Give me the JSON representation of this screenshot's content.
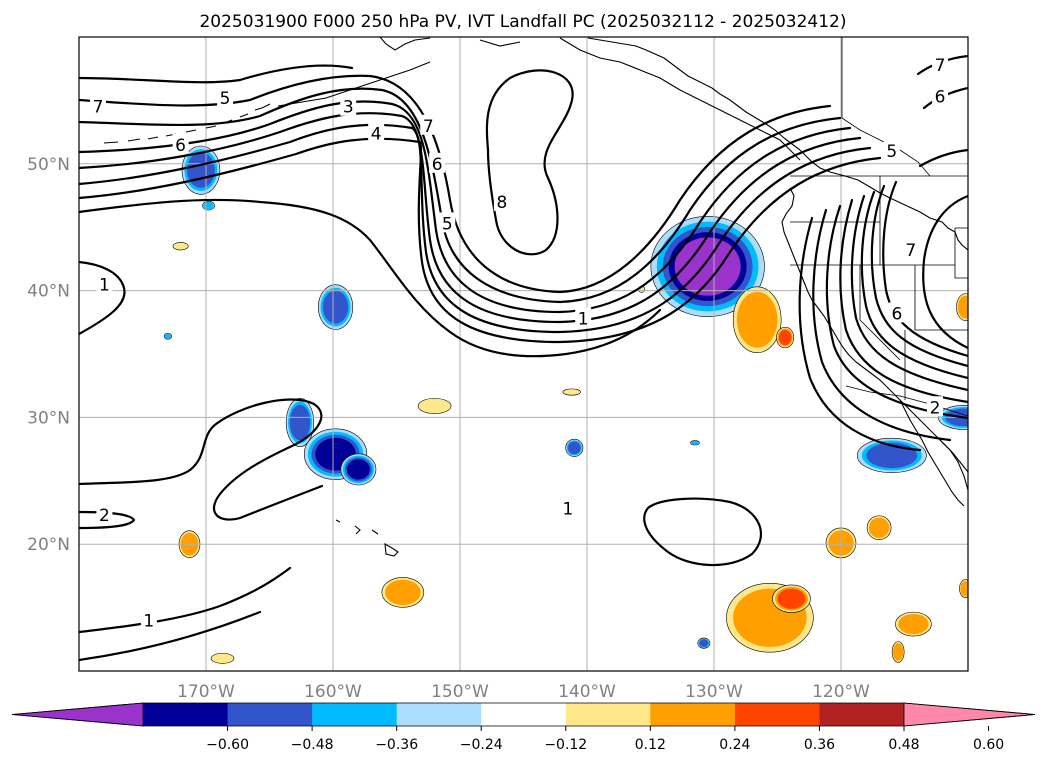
{
  "title": "2025031900 F000 250 hPa PV, IVT Landfall PC (2025032112 - 2025032412)",
  "map": {
    "extent": {
      "lon_min": -180,
      "lon_max": -110,
      "lat_min": 10,
      "lat_max": 60
    },
    "lon_ticks": [
      {
        "lon": -170,
        "label": "170°W"
      },
      {
        "lon": -160,
        "label": "160°W"
      },
      {
        "lon": -150,
        "label": "150°W"
      },
      {
        "lon": -140,
        "label": "140°W"
      },
      {
        "lon": -130,
        "label": "130°W"
      },
      {
        "lon": -120,
        "label": "120°W"
      }
    ],
    "lat_ticks": [
      {
        "lat": 50,
        "label": "50°N"
      },
      {
        "lat": 40,
        "label": "40°N"
      },
      {
        "lat": 30,
        "label": "30°N"
      },
      {
        "lat": 20,
        "label": "20°N"
      }
    ],
    "grid": true,
    "contour_labels": [
      {
        "text": "7",
        "lon": -178.5,
        "lat": 54.5
      },
      {
        "text": "5",
        "lon": -168.5,
        "lat": 55.2
      },
      {
        "text": "6",
        "lon": -172.0,
        "lat": 51.5
      },
      {
        "text": "3",
        "lon": -158.8,
        "lat": 54.5
      },
      {
        "text": "4",
        "lon": -156.6,
        "lat": 52.4
      },
      {
        "text": "7",
        "lon": -152.5,
        "lat": 53.0
      },
      {
        "text": "6",
        "lon": -151.8,
        "lat": 50.0
      },
      {
        "text": "5",
        "lon": -151.0,
        "lat": 45.3
      },
      {
        "text": "8",
        "lon": -146.7,
        "lat": 47.0
      },
      {
        "text": "1",
        "lon": -178.0,
        "lat": 40.5
      },
      {
        "text": "1",
        "lon": -140.3,
        "lat": 37.8
      },
      {
        "text": "2",
        "lon": -178.0,
        "lat": 22.3
      },
      {
        "text": "1",
        "lon": -141.5,
        "lat": 22.8
      },
      {
        "text": "1",
        "lon": -174.5,
        "lat": 14.0
      },
      {
        "text": "7",
        "lon": -112.2,
        "lat": 57.8
      },
      {
        "text": "6",
        "lon": -112.2,
        "lat": 55.3
      },
      {
        "text": "5",
        "lon": -116.0,
        "lat": 51.0
      },
      {
        "text": "7",
        "lon": -114.5,
        "lat": 43.2
      },
      {
        "text": "6",
        "lon": -115.6,
        "lat": 38.2
      },
      {
        "text": "2",
        "lon": -112.6,
        "lat": 30.8
      }
    ],
    "pc_field": [
      {
        "name": "blob-1",
        "lon": -170.4,
        "lat": 49.5,
        "rx": 1.1,
        "ry": 1.4,
        "level": 2
      },
      {
        "name": "blob-2",
        "lon": -169.8,
        "lat": 46.7,
        "rx": 0.4,
        "ry": 0.3,
        "level": 3
      },
      {
        "name": "blob-3",
        "lon": -159.8,
        "lat": 38.7,
        "rx": 1.0,
        "ry": 1.3,
        "level": 2
      },
      {
        "name": "blob-4",
        "lon": -162.6,
        "lat": 29.6,
        "rx": 0.8,
        "ry": 1.4,
        "level": 2
      },
      {
        "name": "blob-5",
        "lon": -159.8,
        "lat": 27.1,
        "rx": 1.6,
        "ry": 1.3,
        "level": 1
      },
      {
        "name": "blob-6",
        "lon": -158.0,
        "lat": 25.9,
        "rx": 0.9,
        "ry": 0.8,
        "level": 1
      },
      {
        "name": "blob-7",
        "lon": -130.5,
        "lat": 41.9,
        "rx": 2.6,
        "ry": 2.3,
        "level": 0
      },
      {
        "name": "blob-8",
        "lon": -141.0,
        "lat": 27.6,
        "rx": 0.5,
        "ry": 0.5,
        "level": 2
      },
      {
        "name": "blob-9",
        "lon": -116.0,
        "lat": 27.0,
        "rx": 2.0,
        "ry": 1.0,
        "level": 2
      },
      {
        "name": "blob-10",
        "lon": -110.3,
        "lat": 30.0,
        "rx": 1.5,
        "ry": 0.7,
        "level": 2
      },
      {
        "name": "blob-11",
        "lon": -131.5,
        "lat": 28.0,
        "rx": 0.3,
        "ry": 0.15,
        "level": 3
      },
      {
        "name": "blob-12",
        "lon": -130.8,
        "lat": 12.2,
        "rx": 0.35,
        "ry": 0.3,
        "level": 2
      },
      {
        "name": "blob-13",
        "lon": -173.0,
        "lat": 36.4,
        "rx": 0.25,
        "ry": 0.2,
        "level": 3
      },
      {
        "name": "blob-14",
        "lon": -152.0,
        "lat": 30.9,
        "rx": 1.3,
        "ry": 0.6,
        "level": 6
      },
      {
        "name": "blob-15",
        "lon": -126.6,
        "lat": 37.7,
        "rx": 1.6,
        "ry": 2.2,
        "level": 7
      },
      {
        "name": "blob-16",
        "lon": -124.4,
        "lat": 36.3,
        "rx": 0.5,
        "ry": 0.6,
        "level": 8
      },
      {
        "name": "blob-17",
        "lon": -125.6,
        "lat": 14.2,
        "rx": 2.9,
        "ry": 2.3,
        "level": 7
      },
      {
        "name": "blob-18",
        "lon": -123.9,
        "lat": 15.7,
        "rx": 1.1,
        "ry": 0.8,
        "level": 8
      },
      {
        "name": "blob-19",
        "lon": -120.0,
        "lat": 20.1,
        "rx": 1.0,
        "ry": 1.0,
        "level": 7
      },
      {
        "name": "blob-20",
        "lon": -117.0,
        "lat": 21.3,
        "rx": 0.8,
        "ry": 0.8,
        "level": 7
      },
      {
        "name": "blob-21",
        "lon": -154.5,
        "lat": 16.2,
        "rx": 1.4,
        "ry": 1.0,
        "level": 7
      },
      {
        "name": "blob-22",
        "lon": -171.3,
        "lat": 20.0,
        "rx": 0.7,
        "ry": 0.9,
        "level": 7
      },
      {
        "name": "blob-23",
        "lon": -114.3,
        "lat": 13.7,
        "rx": 1.2,
        "ry": 0.8,
        "level": 7
      },
      {
        "name": "blob-24",
        "lon": -110.2,
        "lat": 38.7,
        "rx": 0.6,
        "ry": 0.9,
        "level": 7
      },
      {
        "name": "blob-25",
        "lon": -110.2,
        "lat": 16.5,
        "rx": 0.4,
        "ry": 0.6,
        "level": 7
      },
      {
        "name": "blob-26",
        "lon": -115.5,
        "lat": 11.5,
        "rx": 0.4,
        "ry": 0.7,
        "level": 7
      },
      {
        "name": "blob-27",
        "lon": -168.7,
        "lat": 11.0,
        "rx": 0.9,
        "ry": 0.4,
        "level": 6
      },
      {
        "name": "blob-28",
        "lon": -141.2,
        "lat": 32.0,
        "rx": 0.7,
        "ry": 0.25,
        "level": 6
      },
      {
        "name": "blob-29",
        "lon": -172.0,
        "lat": 43.5,
        "rx": 0.6,
        "ry": 0.3,
        "level": 6
      },
      {
        "name": "blob-30",
        "lon": -163.5,
        "lat": 46.2,
        "rx": 0.4,
        "ry": 0.2,
        "level": 5
      },
      {
        "name": "blob-31",
        "lon": -150.3,
        "lat": 29.0,
        "rx": 0.35,
        "ry": 0.15,
        "level": 5
      },
      {
        "name": "blob-32",
        "lon": -136.0,
        "lat": 28.6,
        "rx": 0.2,
        "ry": 0.2,
        "level": 5
      },
      {
        "name": "blob-33",
        "lon": -135.7,
        "lat": 40.1,
        "rx": 0.25,
        "ry": 0.25,
        "level": 6
      },
      {
        "name": "blob-34",
        "lon": -172.8,
        "lat": 22.8,
        "rx": 0.35,
        "ry": 0.3,
        "level": 5
      },
      {
        "name": "blob-35",
        "lon": -171.8,
        "lat": 35.5,
        "rx": 0.25,
        "ry": 0.15,
        "level": 5
      }
    ]
  },
  "colorbar": {
    "colors": [
      "#9933cc",
      "#000099",
      "#3355cc",
      "#00bbff",
      "#aaddff",
      "#ffffff",
      "#ffe88a",
      "#ffa000",
      "#ff4400",
      "#b22222",
      "#ff88aa"
    ],
    "ticks": [
      "−0.60",
      "−0.48",
      "−0.36",
      "−0.24",
      "−0.12",
      "0.12",
      "0.24",
      "0.36",
      "0.48",
      "0.60"
    ],
    "extend": "both"
  }
}
